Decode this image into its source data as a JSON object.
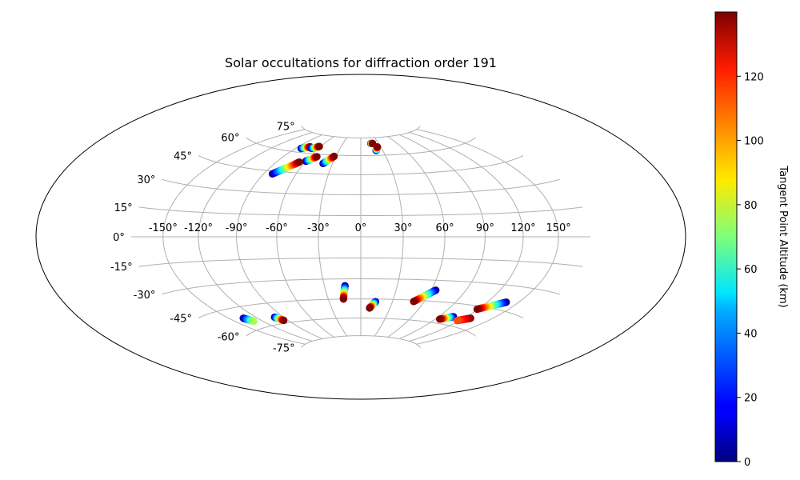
{
  "chart_data": {
    "type": "scatter",
    "projection": "hammer",
    "title": "Solar occultations for diffraction order 191",
    "grid": true,
    "lon_ticks": [
      -150,
      -120,
      -90,
      -60,
      -30,
      0,
      30,
      60,
      90,
      120,
      150
    ],
    "lon_tick_labels": [
      "-150°",
      "-120°",
      "-90°",
      "-60°",
      "-30°",
      "0°",
      "30°",
      "60°",
      "90°",
      "120°",
      "150°"
    ],
    "lat_ticks": [
      -75,
      -60,
      -45,
      -30,
      -15,
      0,
      15,
      30,
      45,
      60,
      75
    ],
    "lat_tick_labels": [
      "-75°",
      "-60°",
      "-45°",
      "-30°",
      "-15°",
      "0°",
      "15°",
      "30°",
      "45°",
      "60°",
      "75°"
    ],
    "colorbar": {
      "label": "Tangent Point Altitude (km)",
      "colormap": "jet",
      "range": [
        0,
        140
      ],
      "ticks": [
        0,
        20,
        40,
        60,
        80,
        100,
        120
      ],
      "tick_labels": [
        "0",
        "20",
        "40",
        "60",
        "80",
        "100",
        "120"
      ]
    },
    "tracks": [
      {
        "lon_start": -83,
        "lat_start": 63,
        "lon_end": -74,
        "lat_end": 65,
        "alt_start": 0,
        "alt_end": 140
      },
      {
        "lon_start": -70,
        "lat_start": 64,
        "lon_end": -62,
        "lat_end": 66,
        "alt_start": 0,
        "alt_end": 140
      },
      {
        "lon_start": -60,
        "lat_start": 54,
        "lon_end": -52,
        "lat_end": 58,
        "alt_start": 0,
        "alt_end": 140
      },
      {
        "lon_start": -82,
        "lat_start": 43,
        "lon_end": -66,
        "lat_end": 53,
        "alt_start": 0,
        "alt_end": 140
      },
      {
        "lon_start": -40,
        "lat_start": 53,
        "lon_end": -32,
        "lat_end": 59,
        "alt_start": 0,
        "alt_end": 140
      },
      {
        "lon_start": 17,
        "lat_start": 70,
        "lon_end": 20,
        "lat_end": 70,
        "alt_start": 0,
        "alt_end": 140
      },
      {
        "lon_start": 21,
        "lat_start": 64,
        "lon_end": 25,
        "lat_end": 67,
        "alt_start": 0,
        "alt_end": 140
      },
      {
        "lon_start": -13,
        "lat_start": -35,
        "lon_end": -16,
        "lat_end": -45,
        "alt_start": 0,
        "alt_end": 140
      },
      {
        "lon_start": 14,
        "lat_start": -47,
        "lon_end": 9,
        "lat_end": -52,
        "alt_start": 0,
        "alt_end": 140
      },
      {
        "lon_start": 64,
        "lat_start": -37,
        "lon_end": 50,
        "lat_end": -46,
        "alt_start": 0,
        "alt_end": 140
      },
      {
        "lon_start": 138,
        "lat_start": -40,
        "lon_end": 119,
        "lat_end": -47,
        "alt_start": 0,
        "alt_end": 140
      },
      {
        "lon_start": 106,
        "lat_start": -54,
        "lon_end": 95,
        "lat_end": -57,
        "alt_start": 0,
        "alt_end": 140
      },
      {
        "lon_start": 127,
        "lat_start": -53,
        "lon_end": 117,
        "lat_end": -56,
        "alt_start": 140,
        "alt_end": 112
      },
      {
        "lon_start": -135,
        "lat_start": -52,
        "lon_end": -130,
        "lat_end": -55,
        "alt_start": 0,
        "alt_end": 75
      },
      {
        "lon_start": -100,
        "lat_start": -55,
        "lon_end": -95,
        "lat_end": -58,
        "alt_start": 0,
        "alt_end": 140
      }
    ]
  }
}
